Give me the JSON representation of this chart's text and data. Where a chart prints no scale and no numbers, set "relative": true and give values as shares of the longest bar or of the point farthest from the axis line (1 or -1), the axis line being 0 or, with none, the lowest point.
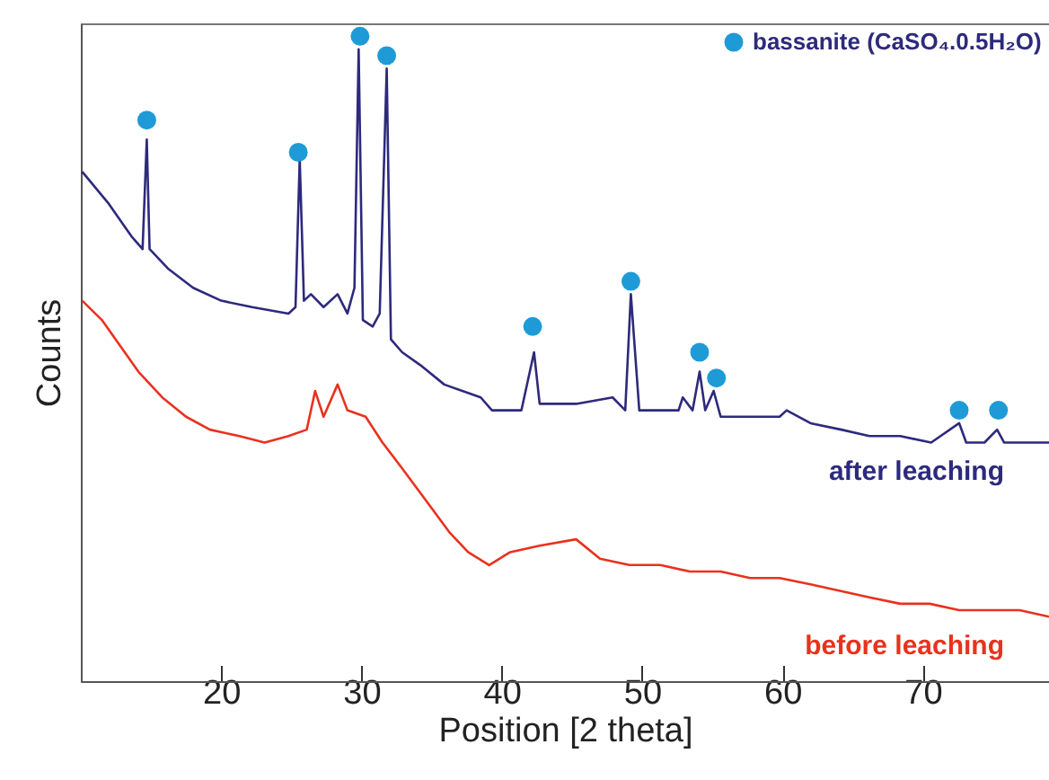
{
  "chart_data": {
    "type": "line",
    "xlabel": "Position [2 theta]",
    "ylabel": "Counts",
    "relative": true,
    "xlim": [
      10,
      79
    ],
    "xticks": [
      20,
      30,
      40,
      50,
      60,
      70
    ],
    "grid": false,
    "legend": "top right",
    "line_style": "solid",
    "series": [
      {
        "name": "after leaching",
        "color": "#2d2a7c",
        "x": [
          10.1,
          12.0,
          13.6,
          14.4,
          14.7,
          14.9,
          16.2,
          18.0,
          20.0,
          22.2,
          24.8,
          25.3,
          25.6,
          25.9,
          26.4,
          27.3,
          28.3,
          29.0,
          29.5,
          29.8,
          30.1,
          30.8,
          31.3,
          31.8,
          32.1,
          32.9,
          34.2,
          35.9,
          38.5,
          39.3,
          41.4,
          42.3,
          42.7,
          45.3,
          47.9,
          48.8,
          49.2,
          49.8,
          52.6,
          52.9,
          53.6,
          54.1,
          54.5,
          55.1,
          55.6,
          57.7,
          59.8,
          60.3,
          62.0,
          64.2,
          66.2,
          68.4,
          70.6,
          72.6,
          73.1,
          74.4,
          75.3,
          75.8,
          76.9,
          79.0
        ],
        "values": [
          0.79,
          0.74,
          0.69,
          0.67,
          0.84,
          0.67,
          0.64,
          0.61,
          0.59,
          0.58,
          0.57,
          0.58,
          0.81,
          0.59,
          0.6,
          0.58,
          0.6,
          0.57,
          0.61,
          0.98,
          0.56,
          0.55,
          0.57,
          0.95,
          0.53,
          0.51,
          0.49,
          0.46,
          0.44,
          0.42,
          0.42,
          0.51,
          0.43,
          0.43,
          0.44,
          0.42,
          0.6,
          0.42,
          0.42,
          0.44,
          0.42,
          0.48,
          0.42,
          0.45,
          0.41,
          0.41,
          0.41,
          0.42,
          0.4,
          0.39,
          0.38,
          0.38,
          0.37,
          0.4,
          0.37,
          0.37,
          0.39,
          0.37,
          0.37,
          0.37
        ]
      },
      {
        "name": "before leaching",
        "color": "#e8321e",
        "x": [
          10.1,
          11.5,
          12.8,
          14.1,
          15.8,
          17.5,
          19.2,
          21.3,
          23.1,
          24.8,
          26.1,
          26.7,
          27.3,
          28.3,
          29.0,
          30.3,
          31.5,
          32.9,
          34.6,
          36.3,
          37.6,
          39.1,
          40.6,
          42.7,
          45.3,
          47.0,
          49.1,
          51.3,
          53.4,
          55.6,
          57.7,
          59.8,
          62.0,
          64.1,
          66.2,
          68.4,
          70.5,
          72.6,
          74.8,
          76.9,
          79.0
        ],
        "values": [
          0.59,
          0.56,
          0.52,
          0.48,
          0.44,
          0.41,
          0.39,
          0.38,
          0.37,
          0.38,
          0.39,
          0.45,
          0.41,
          0.46,
          0.42,
          0.41,
          0.37,
          0.33,
          0.28,
          0.23,
          0.2,
          0.18,
          0.2,
          0.21,
          0.22,
          0.19,
          0.18,
          0.18,
          0.17,
          0.17,
          0.16,
          0.16,
          0.15,
          0.14,
          0.13,
          0.12,
          0.12,
          0.11,
          0.11,
          0.11,
          0.1
        ]
      },
      {
        "name": "bassanite (CaSO₄.0.5H₂O)",
        "type": "scatter",
        "marker": "circle",
        "color": "#1e9bd7",
        "x": [
          14.7,
          25.5,
          29.9,
          31.8,
          42.2,
          49.2,
          54.1,
          55.3,
          72.6,
          75.4
        ],
        "values": [
          0.87,
          0.82,
          1.0,
          0.97,
          0.55,
          0.62,
          0.51,
          0.47,
          0.42,
          0.42
        ]
      }
    ]
  }
}
